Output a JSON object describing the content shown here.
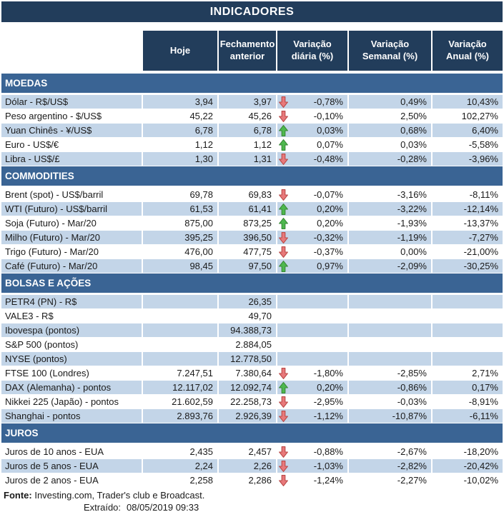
{
  "title": "INDICADORES",
  "columns": [
    "Hoje",
    "Fechamento anterior",
    "Variação diária (%)",
    "Variação Semanal (%)",
    "Variação Anual (%)"
  ],
  "sections": [
    {
      "name": "MOEDAS",
      "rows": [
        {
          "label": "Dólar - R$/US$",
          "hoje": "3,94",
          "fechamento": "3,97",
          "arrow": "down",
          "diaria": "-0,78%",
          "semanal": "0,49%",
          "anual": "10,43%"
        },
        {
          "label": "Peso argentino - $/US$",
          "hoje": "45,22",
          "fechamento": "45,26",
          "arrow": "down",
          "diaria": "-0,10%",
          "semanal": "2,50%",
          "anual": "102,27%"
        },
        {
          "label": "Yuan Chinês - ¥/US$",
          "hoje": "6,78",
          "fechamento": "6,78",
          "arrow": "up",
          "diaria": "0,03%",
          "semanal": "0,68%",
          "anual": "6,40%"
        },
        {
          "label": "Euro - US$/€",
          "hoje": "1,12",
          "fechamento": "1,12",
          "arrow": "up",
          "diaria": "0,07%",
          "semanal": "0,03%",
          "anual": "-5,58%"
        },
        {
          "label": "Libra - US$/£",
          "hoje": "1,30",
          "fechamento": "1,31",
          "arrow": "down",
          "diaria": "-0,48%",
          "semanal": "-0,28%",
          "anual": "-3,96%"
        }
      ]
    },
    {
      "name": "COMMODITIES",
      "rows": [
        {
          "label": "Brent (spot) - US$/barril",
          "hoje": "69,78",
          "fechamento": "69,83",
          "arrow": "down",
          "diaria": "-0,07%",
          "semanal": "-3,16%",
          "anual": "-8,11%"
        },
        {
          "label": "WTI (Futuro) - US$/barril",
          "hoje": "61,53",
          "fechamento": "61,41",
          "arrow": "up",
          "diaria": "0,20%",
          "semanal": "-3,22%",
          "anual": "-12,14%"
        },
        {
          "label": "Soja (Futuro) - Mar/20",
          "hoje": "875,00",
          "fechamento": "873,25",
          "arrow": "up",
          "diaria": "0,20%",
          "semanal": "-1,93%",
          "anual": "-13,37%"
        },
        {
          "label": "Milho (Futuro) - Mar/20",
          "hoje": "395,25",
          "fechamento": "396,50",
          "arrow": "down",
          "diaria": "-0,32%",
          "semanal": "-1,19%",
          "anual": "-7,27%"
        },
        {
          "label": "Trigo (Futuro) - Mar/20",
          "hoje": "476,00",
          "fechamento": "477,75",
          "arrow": "down",
          "diaria": "-0,37%",
          "semanal": "0,00%",
          "anual": "-21,00%"
        },
        {
          "label": "Café (Futuro) - Mar/20",
          "hoje": "98,45",
          "fechamento": "97,50",
          "arrow": "up",
          "diaria": "0,97%",
          "semanal": "-2,09%",
          "anual": "-30,25%"
        }
      ]
    },
    {
      "name": "BOLSAS E AÇÕES",
      "rows": [
        {
          "label": "PETR4 (PN) - R$",
          "hoje": "",
          "fechamento": "26,35",
          "arrow": "none",
          "diaria": "",
          "semanal": "",
          "anual": ""
        },
        {
          "label": "VALE3 - R$",
          "hoje": "",
          "fechamento": "49,70",
          "arrow": "none",
          "diaria": "",
          "semanal": "",
          "anual": ""
        },
        {
          "label": "Ibovespa (pontos)",
          "hoje": "",
          "fechamento": "94.388,73",
          "arrow": "none",
          "diaria": "",
          "semanal": "",
          "anual": ""
        },
        {
          "label": "S&P 500 (pontos)",
          "hoje": "",
          "fechamento": "2.884,05",
          "arrow": "none",
          "diaria": "",
          "semanal": "",
          "anual": ""
        },
        {
          "label": "NYSE (pontos)",
          "hoje": "",
          "fechamento": "12.778,50",
          "arrow": "none",
          "diaria": "",
          "semanal": "",
          "anual": ""
        },
        {
          "label": "FTSE 100 (Londres)",
          "hoje": "7.247,51",
          "fechamento": "7.380,64",
          "arrow": "down",
          "diaria": "-1,80%",
          "semanal": "-2,85%",
          "anual": "2,71%"
        },
        {
          "label": "DAX (Alemanha) - pontos",
          "hoje": "12.117,02",
          "fechamento": "12.092,74",
          "arrow": "up",
          "diaria": "0,20%",
          "semanal": "-0,86%",
          "anual": "0,17%"
        },
        {
          "label": "Nikkei 225 (Japão) - pontos",
          "hoje": "21.602,59",
          "fechamento": "22.258,73",
          "arrow": "down",
          "diaria": "-2,95%",
          "semanal": "-0,03%",
          "anual": "-8,91%"
        },
        {
          "label": "Shanghai - pontos",
          "hoje": "2.893,76",
          "fechamento": "2.926,39",
          "arrow": "down",
          "diaria": "-1,12%",
          "semanal": "-10,87%",
          "anual": "-6,11%"
        }
      ]
    },
    {
      "name": "JUROS",
      "rows": [
        {
          "label": "Juros de 10 anos - EUA",
          "hoje": "2,435",
          "fechamento": "2,457",
          "arrow": "down",
          "diaria": "-0,88%",
          "semanal": "-2,67%",
          "anual": "-18,20%"
        },
        {
          "label": "Juros de 5 anos - EUA",
          "hoje": "2,24",
          "fechamento": "2,26",
          "arrow": "down",
          "diaria": "-1,03%",
          "semanal": "-2,82%",
          "anual": "-20,42%"
        },
        {
          "label": "Juros de 2 anos - EUA",
          "hoje": "2,258",
          "fechamento": "2,286",
          "arrow": "down",
          "diaria": "-1,24%",
          "semanal": "-2,27%",
          "anual": "-10,02%"
        }
      ]
    }
  ],
  "footer": {
    "fonte_label": "Fonte:",
    "fonte_text": " Investing.com, Trader's club e Broadcast.",
    "extraido_label": "Extraído:",
    "extraido_value": "08/05/2019 09:33"
  },
  "colors": {
    "navy": "#223D5B",
    "steel": "#3A6494",
    "stripe": "#C3D5E8",
    "up_fill": "#4EB84E",
    "up_stroke": "#3A8A38",
    "down_fill": "#E8797B",
    "down_stroke": "#BA4A48"
  }
}
